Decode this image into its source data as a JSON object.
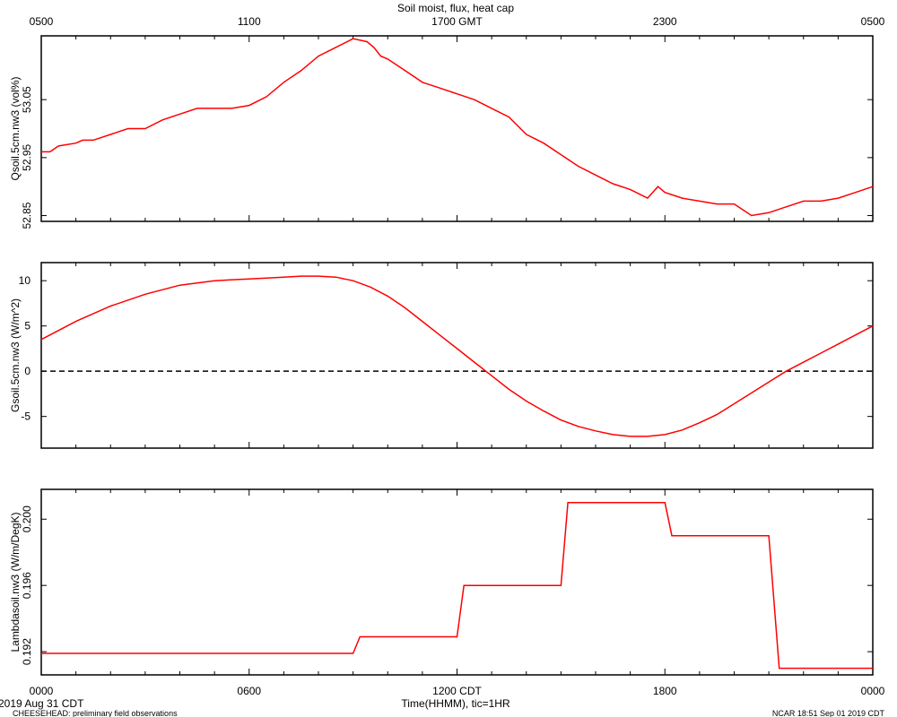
{
  "title": "Soil moist, flux, heat cap",
  "top_axis_ticks": [
    "0500",
    "1100",
    "1700 GMT",
    "2300",
    "0500"
  ],
  "bottom_axis_ticks": [
    "0000",
    "0600",
    "1200 CDT",
    "1800",
    "0000"
  ],
  "xlabel": "Time(HHMM), tic=1HR",
  "date_label": "2019 Aug 31 CDT",
  "footer_left": "CHEESEHEAD: preliminary field observations",
  "footer_right": "NCAR 18:51 Sep 01 2019 CDT",
  "colors": {
    "series": "#ff0000",
    "axis": "#000000",
    "zero_line": "#000000"
  },
  "chart_data": [
    {
      "type": "line",
      "ylabel": "Qsoil.5cm.nw3 (vol%)",
      "xlim": [
        0,
        24
      ],
      "ylim": [
        52.84,
        53.16
      ],
      "yticks": [
        52.85,
        52.95,
        53.05
      ],
      "ytick_labels": [
        "52.85",
        "52.95",
        "53.05"
      ],
      "series": [
        {
          "x": [
            0,
            0.25,
            0.5,
            1,
            1.2,
            1.5,
            2,
            2.5,
            3,
            3.5,
            4,
            4.5,
            5,
            5.5,
            6,
            6.5,
            7,
            7.5,
            8,
            8.5,
            9,
            9.4,
            9.6,
            9.8,
            10,
            10.5,
            11,
            11.5,
            12,
            12.5,
            13,
            13.5,
            14,
            14.5,
            15,
            15.5,
            16,
            16.5,
            17,
            17.5,
            17.8,
            18,
            18.5,
            19,
            19.5,
            20,
            20.5,
            21,
            21.5,
            22,
            22.5,
            23,
            23.5,
            24
          ],
          "y": [
            52.96,
            52.96,
            52.97,
            52.975,
            52.98,
            52.98,
            52.99,
            53.0,
            53.0,
            53.015,
            53.025,
            53.035,
            53.035,
            53.035,
            53.04,
            53.055,
            53.08,
            53.1,
            53.125,
            53.14,
            53.155,
            53.15,
            53.14,
            53.125,
            53.12,
            53.1,
            53.08,
            53.07,
            53.06,
            53.05,
            53.035,
            53.02,
            52.99,
            52.975,
            52.955,
            52.935,
            52.92,
            52.905,
            52.895,
            52.88,
            52.9,
            52.89,
            52.88,
            52.875,
            52.87,
            52.87,
            52.85,
            52.855,
            52.865,
            52.875,
            52.875,
            52.88,
            52.89,
            52.9
          ]
        }
      ]
    },
    {
      "type": "line",
      "ylabel": "Gsoil.5cm.nw3 (W/m^2)",
      "xlim": [
        0,
        24
      ],
      "ylim": [
        -8.5,
        12
      ],
      "yticks": [
        -5,
        0,
        5,
        10
      ],
      "ytick_labels": [
        "-5",
        "0",
        "5",
        "10"
      ],
      "reference_line": {
        "y": 0,
        "style": "dashed"
      },
      "series": [
        {
          "x": [
            0,
            1,
            2,
            3,
            4,
            5,
            6,
            7,
            7.5,
            8,
            8.5,
            9,
            9.5,
            10,
            10.5,
            11,
            11.5,
            12,
            12.5,
            13,
            13.5,
            14,
            14.5,
            15,
            15.5,
            16,
            16.5,
            17,
            17.5,
            18,
            18.5,
            19,
            19.5,
            20,
            20.5,
            21,
            21.5,
            22,
            22.5,
            23,
            23.5,
            24
          ],
          "y": [
            3.5,
            5.5,
            7.2,
            8.5,
            9.5,
            10.0,
            10.2,
            10.4,
            10.5,
            10.5,
            10.4,
            10.0,
            9.3,
            8.3,
            7.0,
            5.5,
            4.0,
            2.5,
            1.0,
            -0.5,
            -2.0,
            -3.3,
            -4.4,
            -5.4,
            -6.1,
            -6.6,
            -7.0,
            -7.2,
            -7.2,
            -7.0,
            -6.5,
            -5.7,
            -4.8,
            -3.6,
            -2.4,
            -1.2,
            0.0,
            1.0,
            2.0,
            3.0,
            4.0,
            5.0
          ]
        }
      ]
    },
    {
      "type": "line",
      "ylabel": "Lambdasoil.nw3 (W/m/DegK)",
      "xlim": [
        0,
        24
      ],
      "ylim": [
        0.1906,
        0.2018
      ],
      "yticks": [
        0.192,
        0.196,
        0.2
      ],
      "ytick_labels": [
        "0.192",
        "0.196",
        "0.200"
      ],
      "series": [
        {
          "x": [
            0,
            9.0,
            9.2,
            12.0,
            12.2,
            15.0,
            15.2,
            18.0,
            18.2,
            21.0,
            21.3,
            24
          ],
          "y": [
            0.1919,
            0.1919,
            0.1929,
            0.1929,
            0.196,
            0.196,
            0.201,
            0.201,
            0.199,
            0.199,
            0.191,
            0.191
          ]
        }
      ]
    }
  ]
}
